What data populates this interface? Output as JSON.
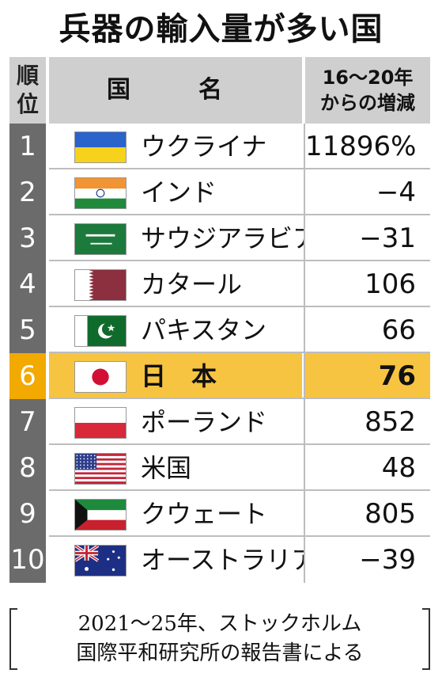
{
  "chart_data": {
    "type": "table",
    "title": "兵器の輸入量が多い国",
    "columns": {
      "rank": "順位",
      "country": "国　名",
      "change_line1": "16〜20年",
      "change_line2": "からの増減"
    },
    "rows": [
      {
        "rank": "1",
        "country": "ウクライナ",
        "change": "11896%",
        "flag": "ukraine-flag-icon"
      },
      {
        "rank": "2",
        "country": "インド",
        "change": "−4",
        "flag": "india-flag-icon"
      },
      {
        "rank": "3",
        "country": "サウジアラビア",
        "change": "−31",
        "flag": "saudi-arabia-flag-icon"
      },
      {
        "rank": "4",
        "country": "カタール",
        "change": "106",
        "flag": "qatar-flag-icon"
      },
      {
        "rank": "5",
        "country": "パキスタン",
        "change": "66",
        "flag": "pakistan-flag-icon"
      },
      {
        "rank": "6",
        "country": "日　本",
        "change": "76",
        "flag": "japan-flag-icon",
        "highlight": true
      },
      {
        "rank": "7",
        "country": "ポーランド",
        "change": "852",
        "flag": "poland-flag-icon"
      },
      {
        "rank": "8",
        "country": "米国",
        "change": "48",
        "flag": "usa-flag-icon"
      },
      {
        "rank": "9",
        "country": "クウェート",
        "change": "805",
        "flag": "kuwait-flag-icon"
      },
      {
        "rank": "10",
        "country": "オーストラリア",
        "change": "−39",
        "flag": "australia-flag-icon"
      }
    ],
    "source_line1": "2021〜25年、ストックホルム",
    "source_line2": "国際平和研究所の報告書による",
    "colors": {
      "rank_bg": "#6b6b6b",
      "header_bg": "#cfcfcf",
      "highlight": "#f6c440",
      "highlight_rank": "#f2a900"
    }
  }
}
